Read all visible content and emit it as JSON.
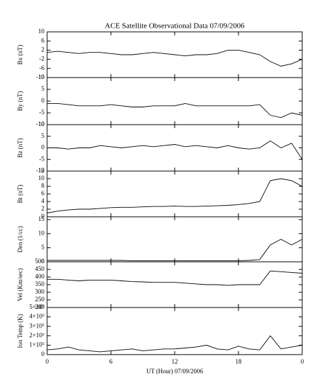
{
  "chart_data": [
    {
      "type": "line",
      "title": "ACE Satellite Observational Data   07/09/2006",
      "ylabel": "Bx (nT)",
      "x": [
        0,
        1,
        2,
        3,
        4,
        5,
        6,
        7,
        8,
        9,
        10,
        11,
        12,
        13,
        14,
        15,
        16,
        17,
        18,
        19,
        20,
        21,
        22,
        23,
        24
      ],
      "values": [
        1,
        1.5,
        1,
        0.5,
        1,
        1,
        0.5,
        0,
        0,
        0.5,
        1,
        0.5,
        0,
        -0.5,
        0,
        0,
        0.5,
        2,
        2,
        1,
        0,
        -3,
        -5,
        -4,
        -2
      ],
      "ylim": [
        -10,
        10
      ],
      "yticks": [
        -10,
        -6,
        -2,
        2,
        6,
        10
      ],
      "xlim": [
        0,
        24
      ]
    },
    {
      "type": "line",
      "ylabel": "By (nT)",
      "x": [
        0,
        1,
        2,
        3,
        4,
        5,
        6,
        7,
        8,
        9,
        10,
        11,
        12,
        13,
        14,
        15,
        16,
        17,
        18,
        19,
        20,
        21,
        22,
        23,
        24
      ],
      "values": [
        -1,
        -1,
        -1.5,
        -2,
        -2,
        -2,
        -1.5,
        -2,
        -2.5,
        -2.5,
        -2,
        -2,
        -2,
        -1,
        -2,
        -2,
        -2,
        -2,
        -2,
        -2,
        -1.5,
        -6,
        -7,
        -5,
        -6
      ],
      "ylim": [
        -10,
        10
      ],
      "yticks": [
        -10,
        -5,
        0,
        5,
        10
      ],
      "xlim": [
        0,
        24
      ]
    },
    {
      "type": "line",
      "ylabel": "Bz (nT)",
      "x": [
        0,
        1,
        2,
        3,
        4,
        5,
        6,
        7,
        8,
        9,
        10,
        11,
        12,
        13,
        14,
        15,
        16,
        17,
        18,
        19,
        20,
        21,
        22,
        23,
        24
      ],
      "values": [
        0,
        0,
        -0.5,
        0,
        0,
        1,
        0.5,
        0,
        0.5,
        1,
        0.5,
        1,
        1.5,
        0.5,
        1,
        0.5,
        0,
        1,
        0,
        -0.5,
        0,
        3,
        0,
        2,
        -5
      ],
      "ylim": [
        -10,
        10
      ],
      "yticks": [
        -10,
        -5,
        0,
        5,
        10
      ],
      "xlim": [
        0,
        24
      ]
    },
    {
      "type": "line",
      "ylabel": "Bt (nT)",
      "x": [
        0,
        1,
        2,
        3,
        4,
        5,
        6,
        7,
        8,
        9,
        10,
        11,
        12,
        13,
        14,
        15,
        16,
        17,
        18,
        19,
        20,
        21,
        22,
        23,
        24
      ],
      "values": [
        1,
        1.5,
        1.8,
        2,
        2,
        2.2,
        2.4,
        2.5,
        2.5,
        2.6,
        2.7,
        2.7,
        2.8,
        2.7,
        2.7,
        2.8,
        2.9,
        3,
        3.2,
        3.5,
        4,
        9.5,
        10,
        9.5,
        8
      ],
      "ylim": [
        0,
        12
      ],
      "yticks": [
        0,
        2,
        4,
        6,
        8,
        10,
        12
      ],
      "xlim": [
        0,
        24
      ]
    },
    {
      "type": "line",
      "ylabel": "Den (1/cc)",
      "x": [
        0,
        1,
        2,
        3,
        4,
        5,
        6,
        7,
        8,
        9,
        10,
        11,
        12,
        13,
        14,
        15,
        16,
        17,
        18,
        19,
        20,
        21,
        22,
        23,
        24
      ],
      "values": [
        0.5,
        0.5,
        0.5,
        0.5,
        0.5,
        0.5,
        0.5,
        0.5,
        0.4,
        0.4,
        0.4,
        0.4,
        0.4,
        0.4,
        0.4,
        0.4,
        0.4,
        0.4,
        0.4,
        0.5,
        0.8,
        6,
        8,
        6,
        8
      ],
      "ylim": [
        0,
        16
      ],
      "yticks": [
        0,
        5,
        10,
        15
      ],
      "xlim": [
        0,
        24
      ]
    },
    {
      "type": "line",
      "ylabel": "Vel (Km/sec)",
      "x": [
        0,
        1,
        2,
        3,
        4,
        5,
        6,
        7,
        8,
        9,
        10,
        11,
        12,
        13,
        14,
        15,
        16,
        17,
        18,
        19,
        20,
        21,
        22,
        23,
        24
      ],
      "values": [
        385,
        385,
        380,
        375,
        380,
        380,
        380,
        375,
        370,
        368,
        365,
        365,
        365,
        360,
        355,
        350,
        350,
        345,
        350,
        350,
        350,
        440,
        435,
        430,
        425
      ],
      "ylim": [
        200,
        500
      ],
      "yticks": [
        200,
        250,
        300,
        350,
        400,
        450,
        500
      ],
      "xlim": [
        0,
        24
      ]
    },
    {
      "type": "line",
      "ylabel": "Ion Temp (K)",
      "xlabel": "UT (Hour)   07/09/2006",
      "x": [
        0,
        1,
        2,
        3,
        4,
        5,
        6,
        7,
        8,
        9,
        10,
        11,
        12,
        13,
        14,
        15,
        16,
        17,
        18,
        19,
        20,
        21,
        22,
        23,
        24
      ],
      "values": [
        50000,
        60000,
        80000,
        50000,
        40000,
        30000,
        40000,
        50000,
        60000,
        40000,
        50000,
        60000,
        60000,
        70000,
        80000,
        100000,
        60000,
        50000,
        90000,
        60000,
        50000,
        200000,
        60000,
        80000,
        100000
      ],
      "ylim": [
        0,
        500000
      ],
      "yticks": [
        0,
        {
          "value": 100000,
          "label": "1×10⁵"
        },
        {
          "value": 200000,
          "label": "2×10⁵"
        },
        {
          "value": 300000,
          "label": "3×10⁵"
        },
        {
          "value": 400000,
          "label": "4×10⁵"
        },
        {
          "value": 500000,
          "label": "5×10⁵"
        }
      ],
      "xlim": [
        0,
        24
      ],
      "xticks": [
        0,
        6,
        12,
        18,
        {
          "value": 24,
          "label": "0"
        }
      ]
    }
  ]
}
